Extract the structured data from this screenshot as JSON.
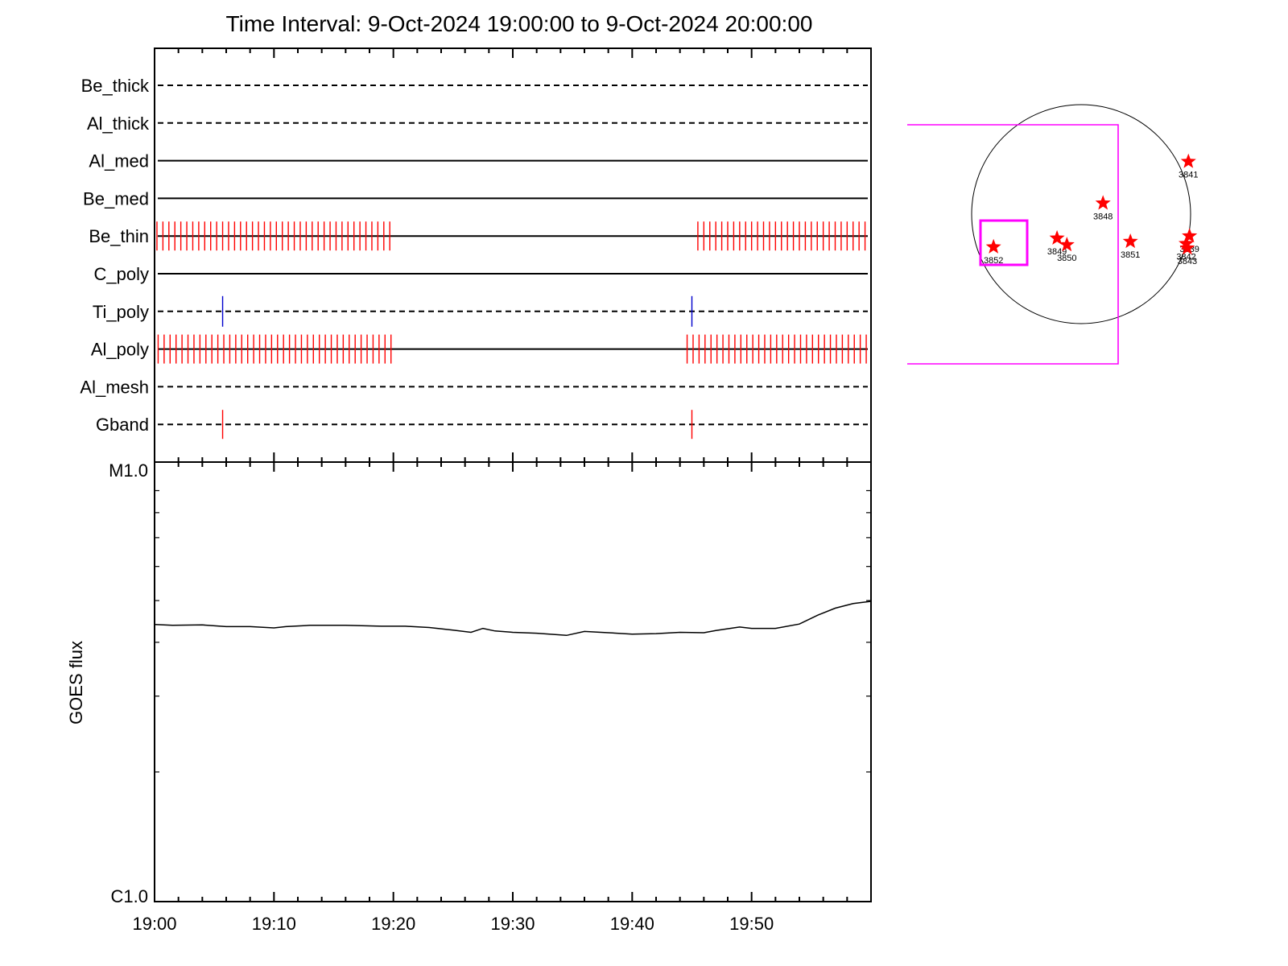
{
  "title": "Time Interval:  9-Oct-2024 19:00:00 to  9-Oct-2024 20:00:00",
  "colors": {
    "accumulation_tick": "#ff0000",
    "secondary_tick": "#0000cc",
    "fov_box": "#ff00ff",
    "axis": "#000000"
  },
  "chart_data": [
    {
      "type": "line",
      "title": "Time Interval:  9-Oct-2024 19:00:00 to  9-Oct-2024 20:00:00",
      "panel": "detector timeline",
      "channels": [
        {
          "name": "Be_thick",
          "style": "dashed",
          "marks": []
        },
        {
          "name": "Al_thick",
          "style": "dashed",
          "marks": []
        },
        {
          "name": "Al_med",
          "style": "solid",
          "marks": []
        },
        {
          "name": "Be_med",
          "style": "solid",
          "marks": []
        },
        {
          "name": "Be_thin",
          "style": "solid",
          "marks": [
            {
              "color": "red",
              "start_min": 0.2,
              "end_min": 20.0,
              "step_min": 0.5
            },
            {
              "color": "red",
              "start_min": 45.5,
              "end_min": 59.5,
              "step_min": 0.5
            }
          ]
        },
        {
          "name": "C_poly",
          "style": "solid",
          "marks": []
        },
        {
          "name": "Ti_poly",
          "style": "dashed",
          "marks": [
            {
              "color": "blue",
              "start_min": 5.7,
              "end_min": 5.7,
              "step_min": 1
            },
            {
              "color": "blue",
              "start_min": 45.0,
              "end_min": 45.0,
              "step_min": 1
            }
          ]
        },
        {
          "name": "Al_poly",
          "style": "solid",
          "marks": [
            {
              "color": "red",
              "start_min": 0.3,
              "end_min": 20.0,
              "step_min": 0.5
            },
            {
              "color": "red",
              "start_min": 44.6,
              "end_min": 59.8,
              "step_min": 0.5
            }
          ]
        },
        {
          "name": "Al_mesh",
          "style": "dashed",
          "marks": []
        },
        {
          "name": "Gband",
          "style": "dashed",
          "marks": [
            {
              "color": "red",
              "start_min": 5.7,
              "end_min": 5.7,
              "step_min": 1
            },
            {
              "color": "red",
              "start_min": 45.0,
              "end_min": 45.0,
              "step_min": 1
            }
          ]
        }
      ],
      "xlim_min": [
        0,
        60
      ]
    },
    {
      "type": "line",
      "panel": "GOES flux",
      "ylabel": "GOES flux",
      "yscale": "log",
      "yticklabels": [
        "M1.0",
        "C1.0"
      ],
      "ylim": [
        1e-06,
        1e-05
      ],
      "xlim_min": [
        0,
        60
      ],
      "xticklabels": [
        "19:00",
        "19:10",
        "19:20",
        "19:30",
        "19:40",
        "19:50"
      ],
      "series": [
        {
          "x_min": [
            0,
            1.5,
            4,
            6,
            8,
            10,
            11,
            13,
            16,
            19,
            21,
            23,
            25,
            26.5,
            27.5,
            28.5,
            30,
            32,
            34.5,
            36,
            38,
            40,
            42,
            44,
            46,
            47,
            49,
            50,
            52,
            54,
            55.5,
            57,
            58.5,
            60
          ],
          "flux": [
            4.4e-06,
            4.38e-06,
            4.39e-06,
            4.35e-06,
            4.35e-06,
            4.32e-06,
            4.35e-06,
            4.38e-06,
            4.38e-06,
            4.36e-06,
            4.36e-06,
            4.33e-06,
            4.27e-06,
            4.22e-06,
            4.31e-06,
            4.25e-06,
            4.22e-06,
            4.2e-06,
            4.15e-06,
            4.24e-06,
            4.21e-06,
            4.18e-06,
            4.19e-06,
            4.22e-06,
            4.21e-06,
            4.26e-06,
            4.34e-06,
            4.31e-06,
            4.31e-06,
            4.41e-06,
            4.62e-06,
            4.8e-06,
            4.92e-06,
            4.98e-06
          ]
        }
      ]
    },
    {
      "type": "scatter",
      "panel": "solar disk map",
      "grid": false,
      "active_regions": [
        {
          "label": "3841",
          "x": 0.98,
          "y": 0.48
        },
        {
          "label": "3848",
          "x": 0.2,
          "y": 0.1
        },
        {
          "label": "3849",
          "x": -0.22,
          "y": -0.22
        },
        {
          "label": "3850",
          "x": -0.13,
          "y": -0.28
        },
        {
          "label": "3851",
          "x": 0.45,
          "y": -0.25
        },
        {
          "label": "3852",
          "x": -0.8,
          "y": -0.3
        },
        {
          "label": "3839",
          "x": 0.99,
          "y": -0.2
        },
        {
          "label": "3842",
          "x": 0.96,
          "y": -0.27
        },
        {
          "label": "3843",
          "x": 0.97,
          "y": -0.31
        }
      ]
    }
  ]
}
